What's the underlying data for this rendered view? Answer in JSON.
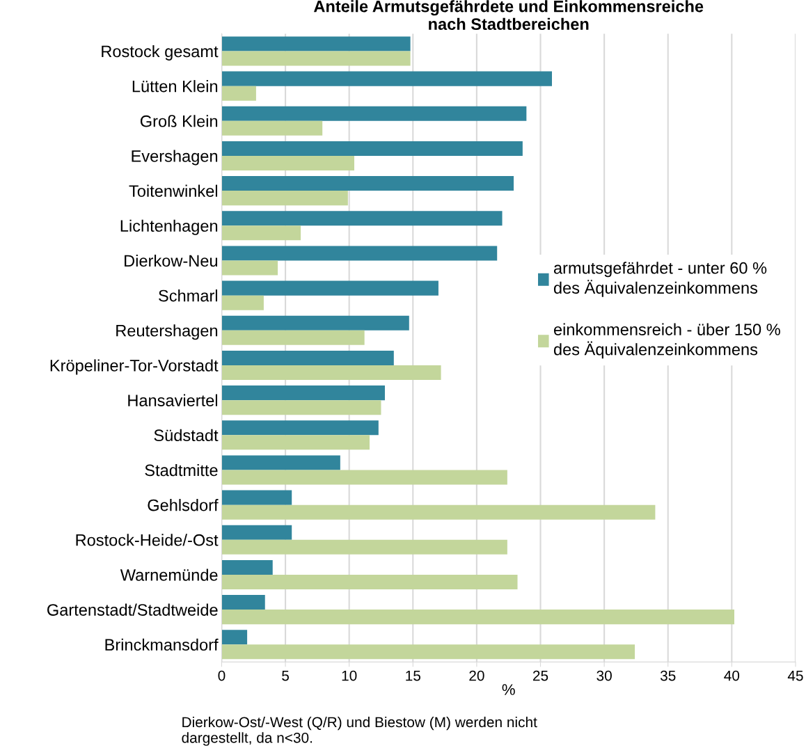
{
  "chart_data": {
    "type": "bar",
    "orientation": "horizontal",
    "title": "Anteile Armutsgefährdete und Einkommensreiche\nnach Stadtbereichen",
    "xlabel": "%",
    "categories": [
      "Rostock gesamt",
      "Lütten Klein",
      "Groß Klein",
      "Evershagen",
      "Toitenwinkel",
      "Lichtenhagen",
      "Dierkow-Neu",
      "Schmarl",
      "Reutershagen",
      "Kröpeliner-Tor-Vorstadt",
      "Hansaviertel",
      "Südstadt",
      "Stadtmitte",
      "Gehlsdorf",
      "Rostock-Heide/-Ost",
      "Warnemünde",
      "Gartenstadt/Stadtweide",
      "Brinckmansdorf"
    ],
    "series": [
      {
        "name": "armutsgefährdet - unter 60 %\ndes Äquivalenzeinkommens",
        "color": "#31859c",
        "values": [
          14.8,
          25.9,
          23.9,
          23.6,
          22.9,
          22.0,
          21.6,
          17.0,
          14.7,
          13.5,
          12.8,
          12.3,
          9.3,
          5.5,
          5.5,
          4.0,
          3.4,
          2.0
        ]
      },
      {
        "name": "einkommensreich - über 150 %\ndes Äquivalenzeinkommens",
        "color": "#c3d69b",
        "values": [
          14.8,
          2.7,
          7.9,
          10.4,
          9.9,
          6.2,
          4.4,
          3.3,
          11.2,
          17.2,
          12.5,
          11.6,
          22.4,
          34.0,
          22.4,
          23.2,
          40.2,
          32.4
        ]
      }
    ],
    "xlim": [
      0,
      45
    ],
    "xticks": [
      0,
      5,
      10,
      15,
      20,
      25,
      30,
      35,
      40,
      45
    ],
    "grid": "x",
    "legend": "right",
    "annotations": [
      "Dierkow-Ost/-West (Q/R) und Biestow (M) werden nicht\ndargestellt, da n<30."
    ]
  }
}
